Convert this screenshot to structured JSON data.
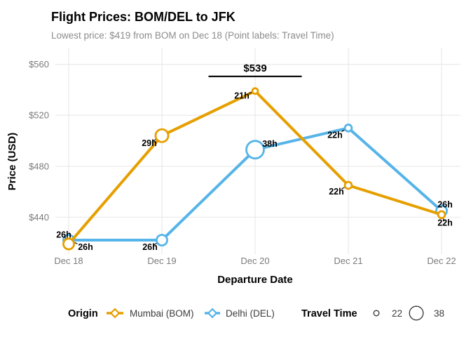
{
  "chart_data": {
    "type": "line",
    "title": "Flight Prices: BOM/DEL to JFK",
    "subtitle": "Lowest price: $419 from BOM on Dec 18 (Point labels: Travel Time)",
    "categories": [
      "Dec 18",
      "Dec 19",
      "Dec 20",
      "Dec 21",
      "Dec 22"
    ],
    "xlabel": "Departure Date",
    "ylabel": "Price (USD)",
    "ylim": [
      411,
      573
    ],
    "yticks": [
      440,
      480,
      520,
      560
    ],
    "ytick_prefix": "$",
    "grid": true,
    "legend_position": "bottom",
    "point_label_meaning": "Travel Time",
    "series": [
      {
        "name": "Mumbai (BOM)",
        "color": "#E69F00",
        "values": [
          419,
          504,
          539,
          465,
          442
        ],
        "travel_hours": [
          26,
          29,
          21,
          22,
          22
        ],
        "point_labels": [
          "26h",
          "29h",
          "21h",
          "22h",
          "22h"
        ],
        "label_offsets": [
          [
            -7,
            -9
          ],
          [
            -18,
            15
          ],
          [
            -19,
            11
          ],
          [
            -17,
            13
          ],
          [
            5,
            16
          ]
        ]
      },
      {
        "name": "Delhi (DEL)",
        "color": "#56B4E9",
        "values": [
          422,
          422,
          493,
          510,
          445
        ],
        "travel_hours": [
          26,
          26,
          38,
          22,
          26
        ],
        "point_labels": [
          "26h",
          "26h",
          "38h",
          "22h",
          "26h"
        ],
        "label_offsets": [
          [
            24,
            14
          ],
          [
            -17,
            14
          ],
          [
            21,
            -4
          ],
          [
            -19,
            14
          ],
          [
            5,
            -5
          ]
        ]
      }
    ],
    "annotation": {
      "text": "$539",
      "category": "Dec 20",
      "line_price": 550.5
    },
    "legend": {
      "origin_title": "Origin",
      "size_title": "Travel Time",
      "size_keys": [
        {
          "label": "22",
          "hours": 22
        },
        {
          "label": "38",
          "hours": 38
        }
      ]
    }
  }
}
